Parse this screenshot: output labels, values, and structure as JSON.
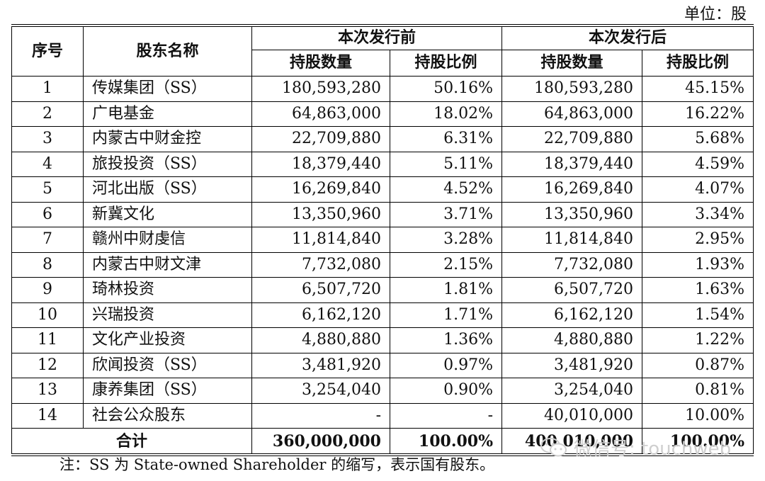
{
  "unit": "单位：股",
  "header": {
    "seq": "序号",
    "name": "股东名称",
    "before": "本次发行前",
    "after": "本次发行后",
    "shares": "持股数量",
    "ratio": "持股比例"
  },
  "rows": [
    {
      "idx": "1",
      "name": "传媒集团（SS）",
      "b_shares": "180,593,280",
      "b_ratio": "50.16%",
      "a_shares": "180,593,280",
      "a_ratio": "45.15%"
    },
    {
      "idx": "2",
      "name": "广电基金",
      "b_shares": "64,863,000",
      "b_ratio": "18.02%",
      "a_shares": "64,863,000",
      "a_ratio": "16.22%"
    },
    {
      "idx": "3",
      "name": "内蒙古中财金控",
      "b_shares": "22,709,880",
      "b_ratio": "6.31%",
      "a_shares": "22,709,880",
      "a_ratio": "5.68%"
    },
    {
      "idx": "4",
      "name": "旅投投资（SS）",
      "b_shares": "18,379,440",
      "b_ratio": "5.11%",
      "a_shares": "18,379,440",
      "a_ratio": "4.59%"
    },
    {
      "idx": "5",
      "name": "河北出版（SS）",
      "b_shares": "16,269,840",
      "b_ratio": "4.52%",
      "a_shares": "16,269,840",
      "a_ratio": "4.07%"
    },
    {
      "idx": "6",
      "name": "新冀文化",
      "b_shares": "13,350,960",
      "b_ratio": "3.71%",
      "a_shares": "13,350,960",
      "a_ratio": "3.34%"
    },
    {
      "idx": "7",
      "name": "赣州中财虔信",
      "b_shares": "11,814,840",
      "b_ratio": "3.28%",
      "a_shares": "11,814,840",
      "a_ratio": "2.95%"
    },
    {
      "idx": "8",
      "name": "内蒙古中财文津",
      "b_shares": "7,732,080",
      "b_ratio": "2.15%",
      "a_shares": "7,732,080",
      "a_ratio": "1.93%"
    },
    {
      "idx": "9",
      "name": "琦林投资",
      "b_shares": "6,507,720",
      "b_ratio": "1.81%",
      "a_shares": "6,507,720",
      "a_ratio": "1.63%"
    },
    {
      "idx": "10",
      "name": "兴瑞投资",
      "b_shares": "6,162,120",
      "b_ratio": "1.71%",
      "a_shares": "6,162,120",
      "a_ratio": "1.54%"
    },
    {
      "idx": "11",
      "name": "文化产业投资",
      "b_shares": "4,880,880",
      "b_ratio": "1.36%",
      "a_shares": "4,880,880",
      "a_ratio": "1.22%"
    },
    {
      "idx": "12",
      "name": "欣闻投资（SS）",
      "b_shares": "3,481,920",
      "b_ratio": "0.97%",
      "a_shares": "3,481,920",
      "a_ratio": "0.87%"
    },
    {
      "idx": "13",
      "name": "康养集团（SS）",
      "b_shares": "3,254,040",
      "b_ratio": "0.90%",
      "a_shares": "3,254,040",
      "a_ratio": "0.81%"
    },
    {
      "idx": "14",
      "name": "社会公众股东",
      "b_shares": "-",
      "b_ratio": "-",
      "a_shares": "40,010,000",
      "a_ratio": "10.00%"
    }
  ],
  "total": {
    "label": "合计",
    "b_shares": "360,000,000",
    "b_ratio": "100.00%",
    "a_shares": "400,010,000",
    "a_ratio": "100.00%"
  },
  "note": "注：SS 为 State-owned Shareholder 的缩写，表示国有股东。",
  "watermark": "微信号: touchweb"
}
